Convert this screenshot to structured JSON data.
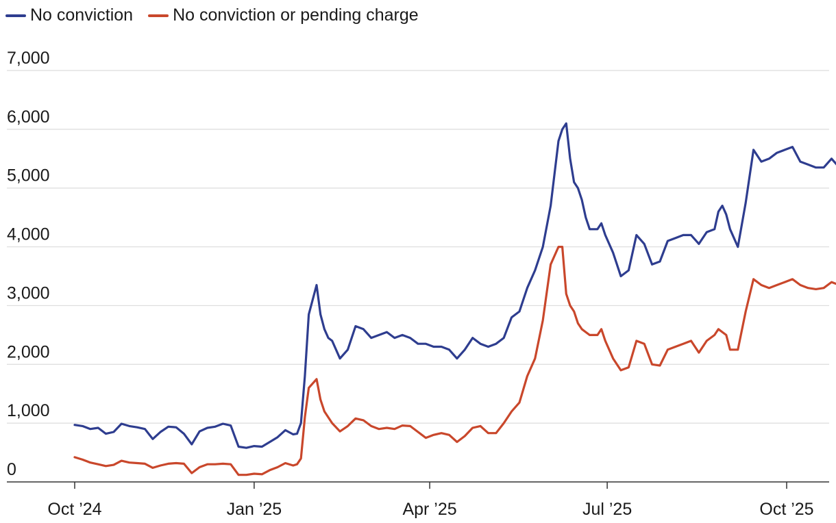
{
  "chart_data": {
    "type": "line",
    "title": "",
    "xlabel": "",
    "ylabel": "",
    "ylim": [
      0,
      7000
    ],
    "yticks": [
      0,
      1000,
      2000,
      3000,
      4000,
      5000,
      6000,
      7000
    ],
    "ytick_labels": [
      "0",
      "1,000",
      "2,000",
      "3,000",
      "4,000",
      "5,000",
      "6,000",
      "7,000"
    ],
    "xlim_days": [
      0,
      425
    ],
    "xticks": [
      {
        "day": 0,
        "label": "Oct ’24"
      },
      {
        "day": 92,
        "label": "Jan ’25"
      },
      {
        "day": 182,
        "label": "Apr ’25"
      },
      {
        "day": 273,
        "label": "Jul ’25"
      },
      {
        "day": 365,
        "label": "Oct ’25"
      }
    ],
    "grid": true,
    "legend": "top-left",
    "series": [
      {
        "name": "No conviction",
        "color": "#2e3d8f",
        "x": [
          0,
          4,
          8,
          12,
          16,
          20,
          24,
          28,
          32,
          36,
          40,
          44,
          48,
          52,
          56,
          60,
          64,
          68,
          72,
          76,
          80,
          84,
          88,
          92,
          96,
          100,
          104,
          108,
          112,
          114,
          116,
          118,
          120,
          124,
          126,
          128,
          130,
          132,
          136,
          140,
          144,
          148,
          152,
          156,
          160,
          164,
          168,
          172,
          176,
          180,
          184,
          188,
          192,
          196,
          200,
          204,
          208,
          212,
          216,
          220,
          224,
          228,
          232,
          236,
          240,
          244,
          248,
          250,
          252,
          254,
          256,
          258,
          260,
          262,
          264,
          268,
          270,
          272,
          276,
          280,
          284,
          288,
          292,
          296,
          300,
          304,
          308,
          312,
          316,
          320,
          324,
          328,
          330,
          332,
          334,
          336,
          340,
          344,
          348,
          352,
          356,
          360,
          364,
          368,
          372,
          376,
          380,
          384,
          388,
          392,
          395
        ],
        "y": [
          970,
          950,
          900,
          920,
          820,
          850,
          990,
          950,
          930,
          900,
          730,
          850,
          940,
          930,
          820,
          640,
          860,
          920,
          940,
          990,
          960,
          600,
          580,
          610,
          600,
          680,
          760,
          880,
          810,
          820,
          1000,
          1800,
          2850,
          3350,
          2850,
          2600,
          2450,
          2400,
          2100,
          2250,
          2650,
          2600,
          2450,
          2500,
          2550,
          2450,
          2500,
          2450,
          2350,
          2350,
          2300,
          2300,
          2250,
          2100,
          2250,
          2450,
          2350,
          2300,
          2350,
          2450,
          2800,
          2900,
          3300,
          3600,
          4000,
          4700,
          5800,
          6000,
          6100,
          5500,
          5100,
          5000,
          4800,
          4500,
          4300,
          4300,
          4400,
          4200,
          3900,
          3500,
          3600,
          4200,
          4050,
          3700,
          3750,
          4100,
          4150,
          4200,
          4200,
          4050,
          4250,
          4300,
          4600,
          4700,
          4550,
          4300,
          4000,
          4750,
          5650,
          5450,
          5500,
          5600,
          5650,
          5700,
          5450,
          5400,
          5350,
          5350,
          5500,
          5350,
          5400
        ]
      },
      {
        "name": "No conviction or pending charge",
        "color": "#c9472b",
        "x": [
          0,
          4,
          8,
          12,
          16,
          20,
          24,
          28,
          32,
          36,
          40,
          44,
          48,
          52,
          56,
          60,
          64,
          68,
          72,
          76,
          80,
          84,
          88,
          92,
          96,
          100,
          104,
          108,
          112,
          114,
          116,
          118,
          120,
          124,
          126,
          128,
          130,
          132,
          136,
          140,
          144,
          148,
          152,
          156,
          160,
          164,
          168,
          172,
          176,
          180,
          184,
          188,
          192,
          196,
          200,
          204,
          208,
          212,
          216,
          220,
          224,
          228,
          232,
          236,
          240,
          244,
          248,
          250,
          252,
          254,
          256,
          258,
          260,
          262,
          264,
          268,
          270,
          272,
          276,
          280,
          284,
          288,
          292,
          296,
          300,
          304,
          308,
          312,
          316,
          320,
          324,
          328,
          330,
          332,
          334,
          336,
          340,
          344,
          348,
          352,
          356,
          360,
          364,
          368,
          372,
          376,
          380,
          384,
          388,
          392,
          395
        ],
        "y": [
          420,
          380,
          330,
          300,
          270,
          290,
          360,
          330,
          320,
          310,
          240,
          280,
          310,
          320,
          310,
          150,
          250,
          300,
          300,
          310,
          300,
          120,
          120,
          140,
          130,
          200,
          250,
          320,
          280,
          300,
          400,
          1100,
          1600,
          1750,
          1400,
          1200,
          1100,
          1000,
          860,
          950,
          1080,
          1050,
          950,
          900,
          920,
          900,
          960,
          950,
          850,
          750,
          800,
          830,
          800,
          680,
          780,
          920,
          950,
          830,
          830,
          1000,
          1200,
          1350,
          1800,
          2100,
          2750,
          3700,
          4000,
          4000,
          3200,
          3000,
          2900,
          2700,
          2600,
          2550,
          2500,
          2500,
          2600,
          2400,
          2100,
          1900,
          1950,
          2400,
          2350,
          2000,
          1980,
          2250,
          2300,
          2350,
          2400,
          2200,
          2400,
          2500,
          2600,
          2550,
          2500,
          2250,
          2250,
          2900,
          3450,
          3350,
          3300,
          3350,
          3400,
          3450,
          3350,
          3300,
          3280,
          3300,
          3400,
          3350,
          3450
        ]
      }
    ]
  }
}
